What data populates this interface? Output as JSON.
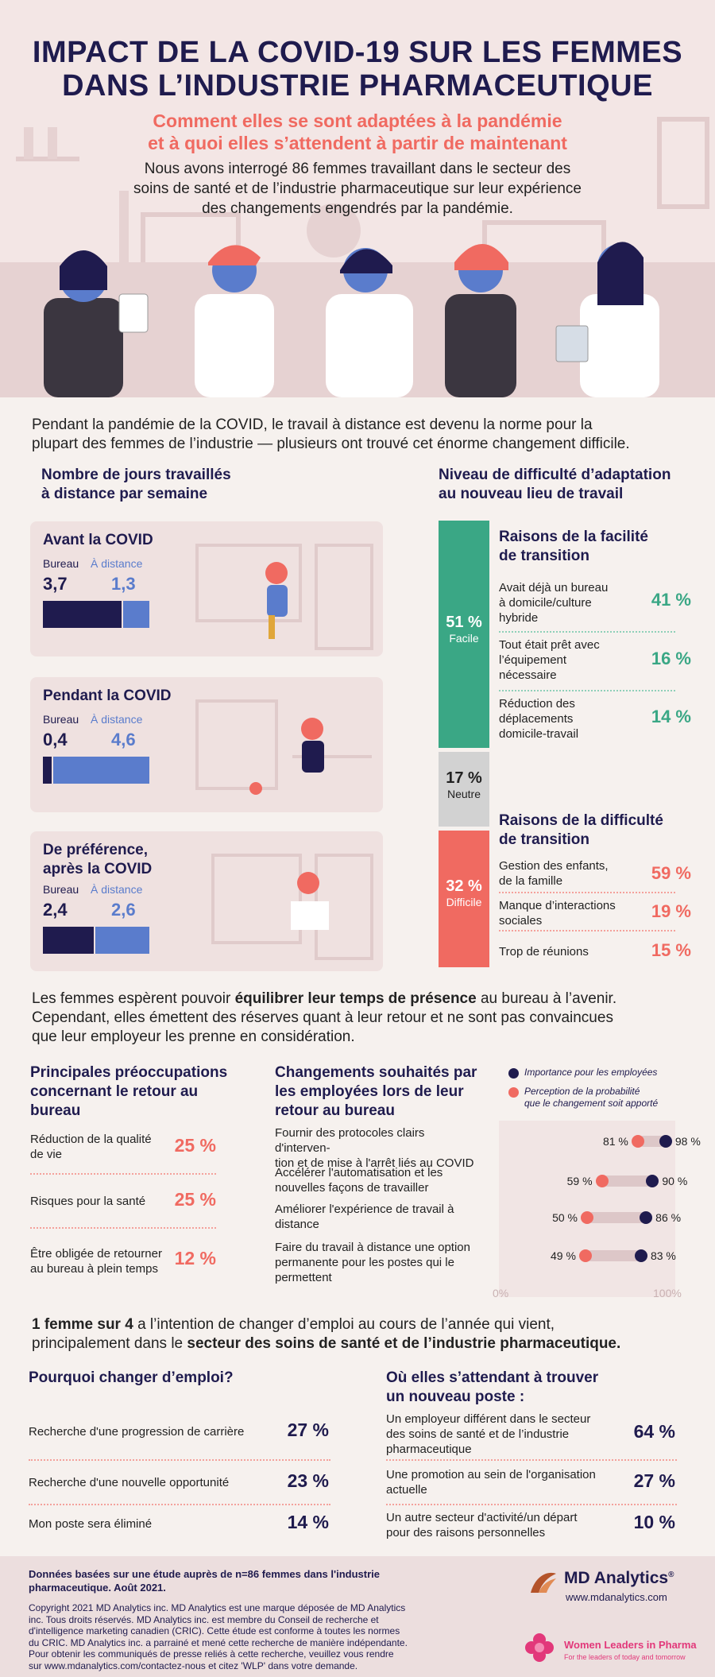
{
  "header": {
    "title_line1": "IMPACT DE LA COVID-19 SUR LES FEMMES",
    "title_line2": "DANS L’INDUSTRIE PHARMACEUTIQUE",
    "subtitle_line1": "Comment elles se sont adaptées à la pandémie",
    "subtitle_line2": "et à quoi elles s’attendent à partir de maintenant",
    "intro_line1": "Nous avons interrogé 86 femmes travaillant dans le secteur des",
    "intro_line2": "soins de santé et de l’industrie pharmaceutique sur leur expérience",
    "intro_line3": "des changements engendrés par la pandémie."
  },
  "remote": {
    "intro_line1": "Pendant la pandémie de la COVID, le travail à distance est devenu la norme pour la",
    "intro_line2": "plupart des femmes de l’industrie — plusieurs ont trouvé cet énorme changement difficile.",
    "heading_line1": "Nombre de jours travaillés",
    "heading_line2": "à distance par semaine",
    "office_label": "Bureau",
    "remote_label": "À distance",
    "cards": [
      {
        "title_line1": "Avant la COVID",
        "title_line2": "",
        "office": "3,7",
        "remote": "1,3",
        "office_value": 3.7,
        "remote_value": 1.3
      },
      {
        "title_line1": "Pendant la COVID",
        "title_line2": "",
        "office": "0,4",
        "remote": "4,6",
        "office_value": 0.4,
        "remote_value": 4.6
      },
      {
        "title_line1": "De préférence,",
        "title_line2": "après la COVID",
        "office": "2,4",
        "remote": "2,6",
        "office_value": 2.4,
        "remote_value": 2.6
      }
    ]
  },
  "difficulty": {
    "heading_line1": "Niveau de difficulté d’adaptation",
    "heading_line2": "au nouveau lieu de travail",
    "easy": {
      "pct": "51 %",
      "label": "Facile",
      "value": 51
    },
    "neutral": {
      "pct": "17 %",
      "label": "Neutre",
      "value": 17
    },
    "hard": {
      "pct": "32 %",
      "label": "Difficile",
      "value": 32
    },
    "easy_heading_line1": "Raisons de la facilité",
    "easy_heading_line2": "de transition",
    "easy_reasons": [
      {
        "line1": "Avait déjà un bureau",
        "line2": "à domicile/culture",
        "line3": "hybride",
        "pct": "41 %"
      },
      {
        "line1": "Tout était prêt avec",
        "line2": "l’équipement",
        "line3": "nécessaire",
        "pct": "16 %"
      },
      {
        "line1": "Réduction des",
        "line2": "déplacements",
        "line3": "domicile-travail",
        "pct": "14 %"
      }
    ],
    "hard_heading_line1": "Raisons de la difficulté",
    "hard_heading_line2": "de transition",
    "hard_reasons": [
      {
        "line1": "Gestion des enfants,",
        "line2": "de la famille",
        "pct": "59 %"
      },
      {
        "line1": "Manque d’interactions",
        "line2": "sociales",
        "pct": "19 %"
      },
      {
        "line1": "Trop de réunions",
        "line2": "",
        "pct": "15 %"
      }
    ]
  },
  "balance": {
    "line1_a": "Les femmes espèrent pouvoir ",
    "line1_bold": "équilibrer leur temps de présence",
    "line1_b": " au bureau à l’avenir.",
    "line2": "Cependant, elles émettent des réserves quant à leur retour et ne sont pas convaincues",
    "line3": "que leur employeur les prenne en considération."
  },
  "concerns": {
    "heading_line1": "Principales préoccupations",
    "heading_line2": "concernant le retour au",
    "heading_line3": "bureau",
    "items": [
      {
        "line1": "Réduction de la qualité",
        "line2": "de vie",
        "pct": "25 %"
      },
      {
        "line1": "Risques pour la santé",
        "line2": "",
        "pct": "25 %"
      },
      {
        "line1": "Être obligée de retourner",
        "line2": "au bureau à plein temps",
        "pct": "12 %"
      }
    ]
  },
  "changes": {
    "heading_line1": "Changements souhaités par",
    "heading_line2": "les employées lors de leur",
    "heading_line3": "retour au bureau",
    "legend_importance": "Importance pour les employées",
    "legend_likelihood_line1": "Perception de la probabilité",
    "legend_likelihood_line2": "que le changement soit apporté",
    "axis_min": "0%",
    "axis_max": "100%",
    "colors": {
      "importance": "#1f1b4e",
      "likelihood": "#f06a61"
    }
  },
  "chart_data": {
    "type": "dumbbell",
    "categories": [
      "Fournir des protocoles clairs d'intervention et de mise à l'arrêt liés au COVID",
      "Accélérer l'automatisation et les nouvelles façons de travailler",
      "Améliorer l'expérience de travail à distance",
      "Faire du travail à distance une option permanente pour les postes qui le permettent"
    ],
    "labels": [
      {
        "line1": "Fournir des protocoles clairs d'interven-",
        "line2": "tion et de mise à l'arrêt liés au COVID",
        "line3": ""
      },
      {
        "line1": "Accélérer l'automatisation et les",
        "line2": "nouvelles façons de travailler",
        "line3": ""
      },
      {
        "line1": "Améliorer l'expérience de travail à",
        "line2": "distance",
        "line3": ""
      },
      {
        "line1": "Faire du travail à distance une option",
        "line2": "permanente pour les postes qui le",
        "line3": "permettent"
      }
    ],
    "series": [
      {
        "name": "Perception de la probabilité que le changement soit apporté",
        "values": [
          81,
          59,
          50,
          49
        ],
        "labels": [
          "81 %",
          "59 %",
          "50 %",
          "49 %"
        ]
      },
      {
        "name": "Importance pour les employées",
        "values": [
          98,
          90,
          86,
          83
        ],
        "labels": [
          "98 %",
          "90 %",
          "86 %",
          "83 %"
        ]
      }
    ],
    "xlim": [
      0,
      100
    ]
  },
  "jobchange": {
    "line1_bold": "1 femme sur 4",
    "line1_rest": " a l’intention de changer d’emploi au cours de l’année qui vient,",
    "line2_a": "principalement dans le ",
    "line2_bold": "secteur des soins de santé et de l’industrie pharmaceutique."
  },
  "why": {
    "heading": "Pourquoi changer d’emploi?",
    "items": [
      {
        "label": "Recherche d'une progression de carrière",
        "pct": "27 %"
      },
      {
        "label": "Recherche d'une nouvelle opportunité",
        "pct": "23 %"
      },
      {
        "label": "Mon poste sera éliminé",
        "pct": "14 %"
      }
    ]
  },
  "where": {
    "heading_line1": "Où elles s’attendant à trouver",
    "heading_line2": "un nouveau poste :",
    "items": [
      {
        "line1": "Un employeur différent dans le secteur",
        "line2": "des soins de santé et de l’industrie",
        "line3": "pharmaceutique",
        "pct": "64 %"
      },
      {
        "line1": "Une promotion au sein de l'organisation",
        "line2": "actuelle",
        "line3": "",
        "pct": "27 %"
      },
      {
        "line1": "Un autre secteur d'activité/un départ",
        "line2": "pour des raisons personnelles",
        "line3": "",
        "pct": "10 %"
      }
    ]
  },
  "footer": {
    "basis_line1": "Données basées sur une étude auprès de n=86 femmes dans l'industrie",
    "basis_line2": "pharmaceutique. Août 2021.",
    "copy_line1": "Copyright 2021 MD Analytics inc. MD Analytics est une marque déposée de MD Analytics",
    "copy_line2": "inc. Tous droits réservés. MD Analytics inc. est membre du Conseil de recherche et",
    "copy_line3": "d'intelligence marketing canadien (CRIC). Cette étude est conforme à toutes les normes",
    "copy_line4": "du CRIC. MD Analytics inc. a parrainé et mené cette recherche de manière indépendante.",
    "copy_line5": "Pour obtenir les communiqués de presse reliés à cette recherche, veuillez vous rendre",
    "copy_line6": "sur www.mdanalytics.com/contactez-nous et citez 'WLP' dans votre demande.",
    "brand_name": "MD Analytics",
    "brand_mark": "®",
    "brand_url": "www.mdanalytics.com",
    "wlp_name": "Women Leaders in Pharma",
    "wlp_tagline": "For the leaders of today and tomorrow"
  }
}
